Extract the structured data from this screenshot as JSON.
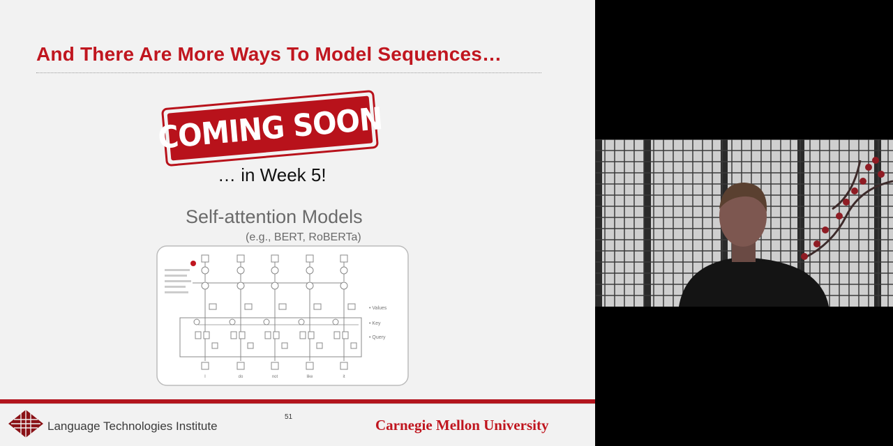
{
  "slide": {
    "title": "And There Are More Ways To Model Sequences…",
    "stamp_text": "COMING SOON",
    "week_note": "… in Week 5!",
    "subtitle": "Self-attention Models",
    "examples": "(e.g., BERT, RoBERTa)",
    "diagram": {
      "side_labels": [
        "• Values",
        "• Key",
        "• Query"
      ],
      "column_tokens": [
        "I",
        "do",
        "not",
        "like",
        "it"
      ]
    }
  },
  "footer": {
    "institute": "Language Technologies Institute",
    "page_number": "51",
    "university": "Carnegie Mellon University"
  },
  "colors": {
    "accent_red": "#c0161f",
    "slide_bg": "#f2f2f2",
    "stamp_red": "#b8121b"
  },
  "video_feed": {
    "content": "presenter-webcam"
  }
}
